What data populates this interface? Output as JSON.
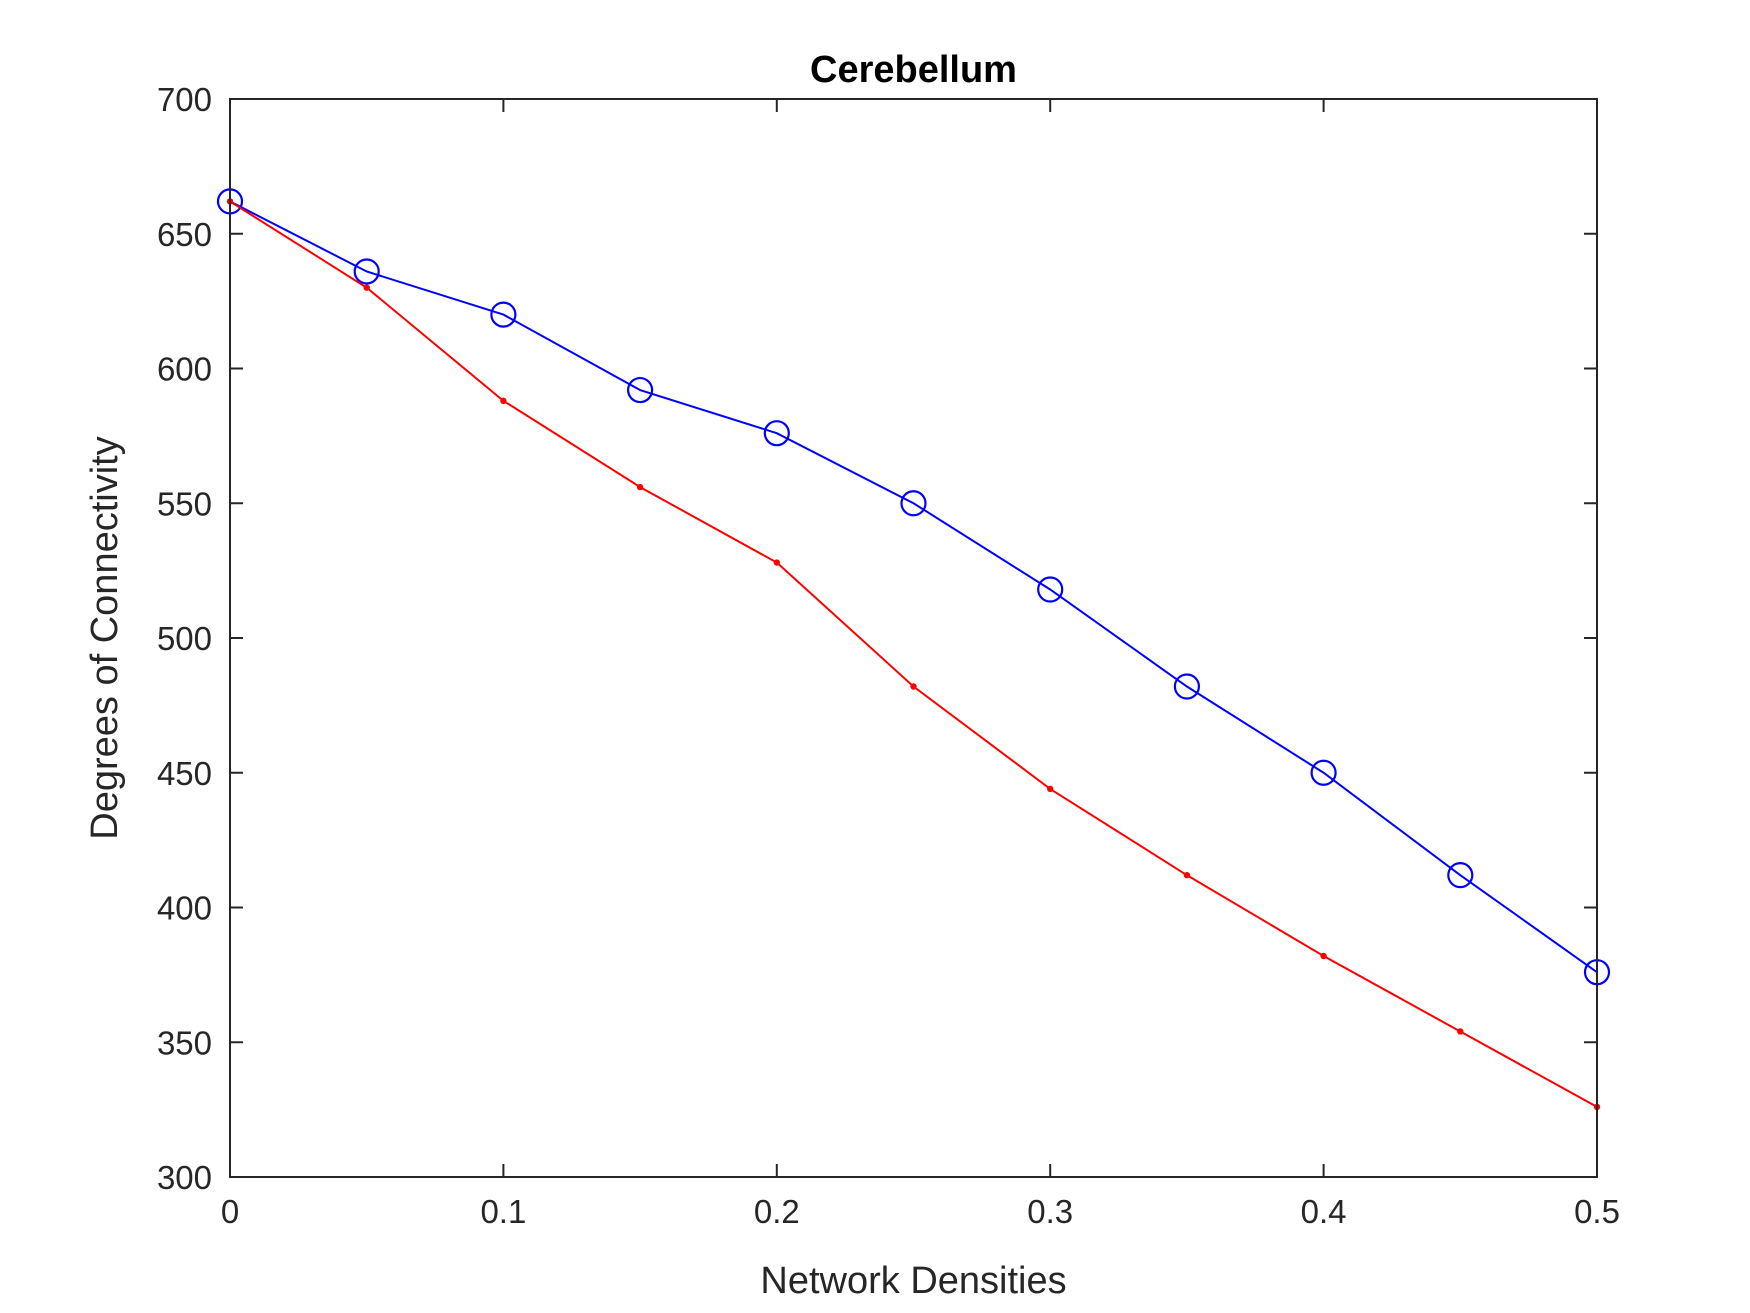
{
  "chart_data": {
    "type": "line",
    "title": "Cerebellum",
    "xlabel": "Network Densities",
    "ylabel": "Degrees of Connectivity",
    "xlim": [
      0,
      0.5
    ],
    "ylim": [
      300,
      700
    ],
    "xticks": [
      0,
      0.1,
      0.2,
      0.3,
      0.4,
      0.5
    ],
    "xtick_labels": [
      "0",
      "0.1",
      "0.2",
      "0.3",
      "0.4",
      "0.5"
    ],
    "yticks": [
      300,
      350,
      400,
      450,
      500,
      550,
      600,
      650,
      700
    ],
    "ytick_labels": [
      "300",
      "350",
      "400",
      "450",
      "500",
      "550",
      "600",
      "650",
      "700"
    ],
    "grid": false,
    "legend": "none",
    "x": [
      0,
      0.05,
      0.1,
      0.15,
      0.2,
      0.25,
      0.3,
      0.35,
      0.4,
      0.45,
      0.5
    ],
    "series": [
      {
        "color": "#0000ff",
        "marker": "circle",
        "values": [
          662,
          636,
          620,
          592,
          576,
          550,
          518,
          482,
          450,
          412,
          376
        ]
      },
      {
        "color": "#ff0000",
        "marker": "dot",
        "values": [
          662,
          630,
          588,
          556,
          528,
          482,
          444,
          412,
          382,
          354,
          326
        ]
      }
    ]
  }
}
